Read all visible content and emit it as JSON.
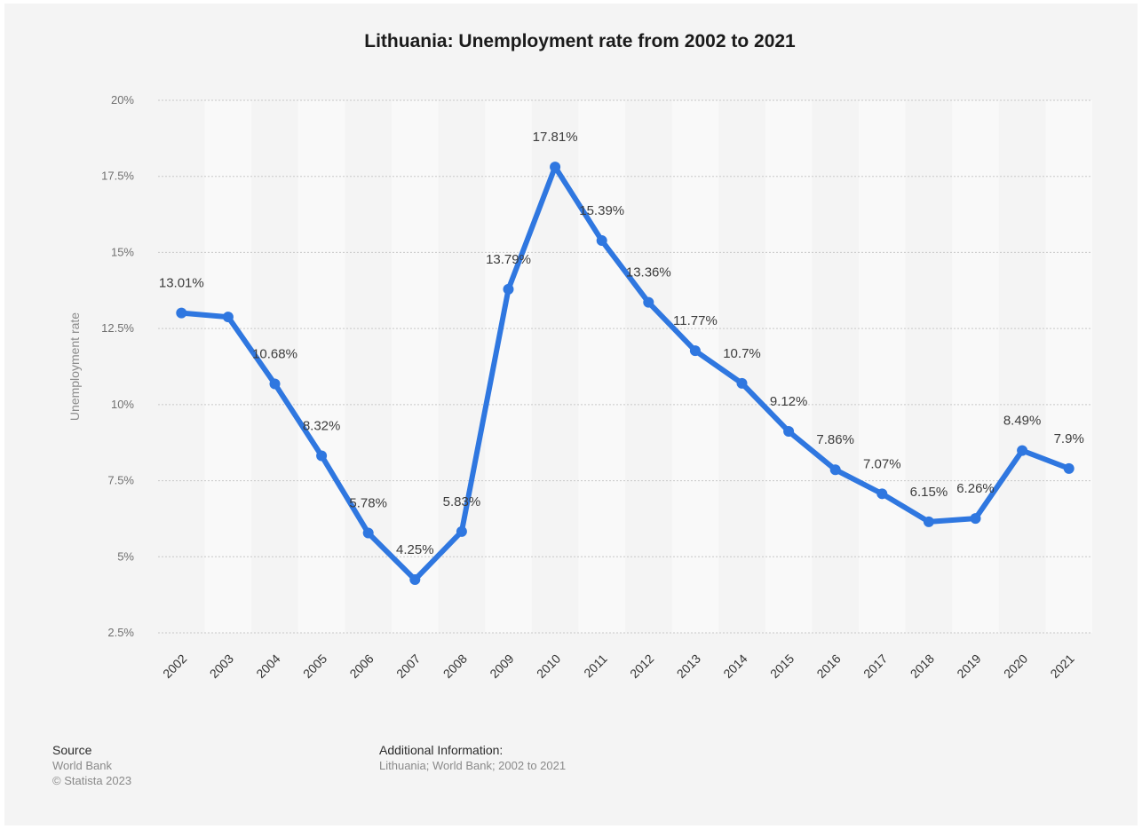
{
  "title": "Lithuania: Unemployment rate from 2002 to 2021",
  "colors": {
    "series": "#2f77e0",
    "background": "#f4f4f4",
    "band": "#f9f9f9",
    "grid": "#c8c8c8"
  },
  "chart_data": {
    "type": "line",
    "title": "Lithuania: Unemployment rate from 2002 to 2021",
    "xlabel": "",
    "ylabel": "Unemployment rate",
    "ylim": [
      2.5,
      20
    ],
    "yticks": [
      2.5,
      5,
      7.5,
      10,
      12.5,
      15,
      17.5,
      20
    ],
    "ytick_labels": [
      "2.5%",
      "5%",
      "7.5%",
      "10%",
      "12.5%",
      "15%",
      "17.5%",
      "20%"
    ],
    "grid": true,
    "categories": [
      "2002",
      "2003",
      "2004",
      "2005",
      "2006",
      "2007",
      "2008",
      "2009",
      "2010",
      "2011",
      "2012",
      "2013",
      "2014",
      "2015",
      "2016",
      "2017",
      "2018",
      "2019",
      "2020",
      "2021"
    ],
    "values": [
      13.01,
      12.88,
      10.68,
      8.32,
      5.78,
      4.25,
      5.83,
      13.79,
      17.81,
      15.39,
      13.36,
      11.77,
      10.7,
      9.12,
      7.86,
      7.07,
      6.15,
      6.26,
      8.49,
      7.9
    ],
    "data_labels": [
      "13.01%",
      "",
      "10.68%",
      "8.32%",
      "5.78%",
      "4.25%",
      "5.83%",
      "13.79%",
      "17.81%",
      "15.39%",
      "13.36%",
      "11.77%",
      "10.7%",
      "9.12%",
      "7.86%",
      "7.07%",
      "6.15%",
      "6.26%",
      "8.49%",
      "7.9%"
    ]
  },
  "footer": {
    "source_heading": "Source",
    "source_name": "World Bank",
    "copyright": "© Statista 2023",
    "info_heading": "Additional Information:",
    "info_text": "Lithuania; World Bank; 2002 to 2021"
  }
}
